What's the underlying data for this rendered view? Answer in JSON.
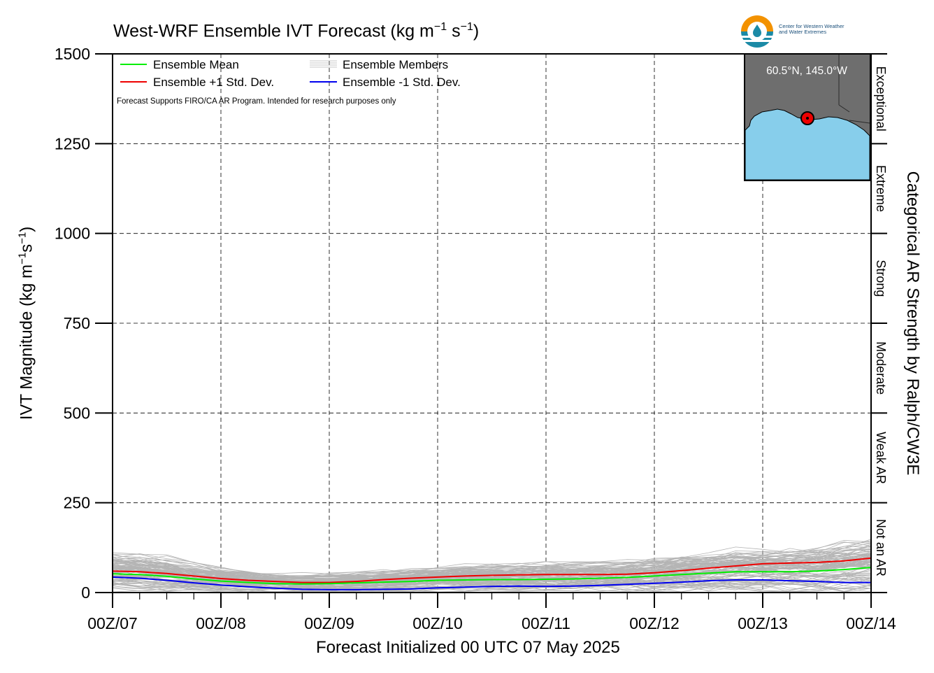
{
  "chart_data": {
    "type": "line",
    "title": "West-WRF Ensemble IVT Forecast (kg m",
    "title_units": {
      "m_exp": "−1",
      "s": " s",
      "s_exp": "−1",
      "close": ")"
    },
    "xlabel": "Forecast Initialized 00 UTC 07 May 2025",
    "ylabel": "IVT Magnitude (kg m",
    "ylabel_units": {
      "m_exp": "−1",
      "s": "s",
      "s_exp": "−1",
      "close": ")"
    },
    "right_axis_label": "Categorical AR Strength by Ralph/CW3E",
    "ylim": [
      0,
      1500
    ],
    "y_ticks": [
      0,
      250,
      500,
      750,
      1000,
      1250,
      1500
    ],
    "y_tick_labels": [
      "0",
      "250",
      "500",
      "750",
      "1000",
      "1250",
      "1500"
    ],
    "x_range_days": [
      7,
      14
    ],
    "x_ticks": [
      "00Z/07",
      "00Z/08",
      "00Z/09",
      "00Z/10",
      "00Z/11",
      "00Z/12",
      "00Z/13",
      "00Z/14"
    ],
    "grid": true,
    "legend_placement": "top-left",
    "legend": [
      {
        "label": "Ensemble Mean",
        "color": "#00ee00"
      },
      {
        "label": "Ensemble +1 Std. Dev.",
        "color": "#ee0000"
      },
      {
        "label": "Ensemble Members",
        "color": "#b4b4b4"
      },
      {
        "label": "Ensemble -1 Std. Dev.",
        "color": "#0000ee"
      }
    ],
    "note": "Forecast Supports FIRO/CA AR Program. Intended for research purposes only",
    "categories_right": [
      {
        "label": "Not an AR",
        "range": [
          0,
          250
        ]
      },
      {
        "label": "Weak AR",
        "range": [
          250,
          500
        ]
      },
      {
        "label": "Moderate",
        "range": [
          500,
          750
        ]
      },
      {
        "label": "Strong",
        "range": [
          750,
          1000
        ]
      },
      {
        "label": "Extreme",
        "range": [
          1000,
          1250
        ]
      },
      {
        "label": "Exceptional",
        "range": [
          1250,
          1500
        ]
      }
    ],
    "x_step_hours": 6,
    "series": [
      {
        "name": "Ensemble Mean",
        "color": "#00ee00",
        "values": [
          52,
          50,
          45,
          38,
          32,
          28,
          25,
          24,
          25,
          27,
          29,
          31,
          34,
          35,
          36,
          36,
          37,
          38,
          40,
          42,
          46,
          50,
          54,
          58,
          58,
          58,
          60,
          64,
          70,
          76,
          78,
          79,
          80,
          82,
          80,
          72,
          63,
          58,
          55,
          53,
          51,
          49,
          47,
          44,
          40,
          37,
          37,
          37,
          38,
          38,
          40,
          44,
          52,
          62,
          74,
          84,
          90,
          93,
          97,
          100,
          99,
          96,
          92,
          88,
          86,
          84,
          82,
          80,
          79
        ]
      },
      {
        "name": "Ensemble +1 Std. Dev.",
        "color": "#ee0000",
        "values": [
          60,
          58,
          53,
          46,
          39,
          34,
          31,
          28,
          28,
          31,
          36,
          40,
          43,
          46,
          48,
          49,
          50,
          50,
          50,
          51,
          55,
          61,
          68,
          74,
          80,
          82,
          84,
          88,
          96,
          107,
          117,
          123,
          122,
          123,
          127,
          128,
          120,
          108,
          98,
          92,
          86,
          80,
          75,
          71,
          64,
          58,
          56,
          56,
          58,
          60,
          65,
          72,
          84,
          100,
          118,
          133,
          150,
          156,
          158,
          160,
          160,
          157,
          152,
          145,
          140,
          137,
          135,
          132,
          129
        ]
      },
      {
        "name": "Ensemble -1 Std. Dev.",
        "color": "#0000ee",
        "values": [
          43,
          40,
          34,
          27,
          21,
          16,
          12,
          9,
          8,
          8,
          9,
          10,
          13,
          15,
          17,
          18,
          17,
          18,
          20,
          23,
          26,
          29,
          33,
          35,
          35,
          33,
          31,
          28,
          28,
          29,
          31,
          32,
          35,
          37,
          34,
          30,
          26,
          20,
          19,
          21,
          23,
          23,
          22,
          21,
          20,
          19,
          18,
          17,
          16,
          15,
          14,
          14,
          14,
          14,
          16,
          20,
          25,
          30,
          34,
          37,
          38,
          38,
          37,
          36,
          35,
          34,
          32,
          30,
          30
        ]
      }
    ]
  }
}
